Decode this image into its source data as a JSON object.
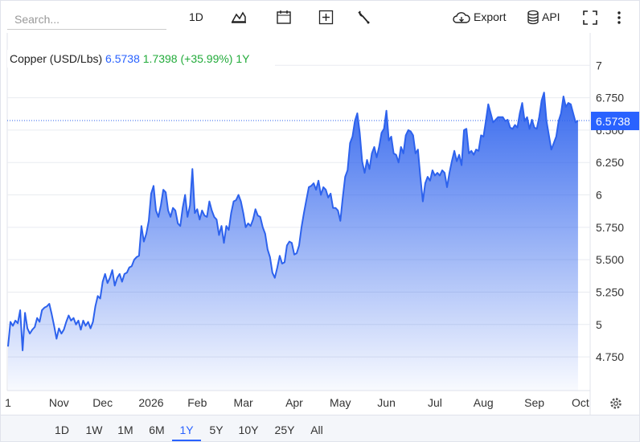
{
  "toolbar": {
    "search_placeholder": "Search...",
    "interval": "1D",
    "export": "Export",
    "api": "API"
  },
  "range_buttons": [
    "1D",
    "1W",
    "1M",
    "6M",
    "1Y",
    "5Y",
    "10Y",
    "25Y",
    "All"
  ],
  "chart_data": {
    "type": "area",
    "title": "Copper (USD/Lbs)",
    "last_price": 6.5738,
    "change": 1.7398,
    "change_pct": {
      "value": 35.99,
      "label": "(+35.99%)"
    },
    "period": "1Y",
    "color": "#2d62ed",
    "grid": true,
    "ylim": [
      4.49,
      7.25
    ],
    "yticks": [
      {
        "value": 4.75,
        "label": "4.750"
      },
      5,
      {
        "value": 5.25,
        "label": "5.250"
      },
      {
        "value": 5.5,
        "label": "5.500"
      },
      {
        "value": 5.75,
        "label": "5.750"
      },
      6,
      {
        "value": 6.25,
        "label": "6.250"
      },
      {
        "value": 6.5,
        "label": "6.500"
      },
      {
        "value": 6.75,
        "label": "6.750"
      },
      7
    ],
    "xlim": [
      0,
      240
    ],
    "xticks": [
      {
        "value": 0,
        "label": "1"
      },
      {
        "value": 21,
        "label": "Nov"
      },
      {
        "value": 39,
        "label": "Dec"
      },
      {
        "value": 59,
        "label": "2026"
      },
      {
        "value": 78,
        "label": "Feb"
      },
      {
        "value": 97,
        "label": "Mar"
      },
      {
        "value": 118,
        "label": "Apr"
      },
      {
        "value": 137,
        "label": "May"
      },
      {
        "value": 156,
        "label": "Jun"
      },
      {
        "value": 176,
        "label": "Jul"
      },
      {
        "value": 196,
        "label": "Aug"
      },
      {
        "value": 217,
        "label": "Sep"
      },
      {
        "value": 236,
        "label": "Oct"
      }
    ],
    "values": [
      4.83,
      5.02,
      4.99,
      5.03,
      5.01,
      5.11,
      4.8,
      5.09,
      4.97,
      4.93,
      4.96,
      4.98,
      5.05,
      5.02,
      5.11,
      5.13,
      5.14,
      5.16,
      5.08,
      4.99,
      4.89,
      4.97,
      4.93,
      4.96,
      5.02,
      5.07,
      5.03,
      5.05,
      5.0,
      5.03,
      4.96,
      5.03,
      4.99,
      5.02,
      4.97,
      5.02,
      5.14,
      5.22,
      5.2,
      5.33,
      5.39,
      5.32,
      5.36,
      5.42,
      5.3,
      5.36,
      5.39,
      5.33,
      5.39,
      5.4,
      5.44,
      5.45,
      5.5,
      5.52,
      5.53,
      5.76,
      5.64,
      5.7,
      5.8,
      6.01,
      6.07,
      5.88,
      5.83,
      5.92,
      6.04,
      6.02,
      5.88,
      5.83,
      5.9,
      5.88,
      5.78,
      5.76,
      5.9,
      6.0,
      5.83,
      5.92,
      6.2,
      5.86,
      5.89,
      5.81,
      5.88,
      5.84,
      5.83,
      5.95,
      5.88,
      5.83,
      5.81,
      5.69,
      5.76,
      5.63,
      5.76,
      5.73,
      5.86,
      5.95,
      5.96,
      6.0,
      5.95,
      5.86,
      5.75,
      5.78,
      5.76,
      5.81,
      5.89,
      5.84,
      5.83,
      5.75,
      5.7,
      5.58,
      5.52,
      5.4,
      5.36,
      5.44,
      5.53,
      5.47,
      5.48,
      5.61,
      5.64,
      5.63,
      5.54,
      5.55,
      5.61,
      5.75,
      5.86,
      5.96,
      6.06,
      6.07,
      6.09,
      6.04,
      6.11,
      6.0,
      6.06,
      6.04,
      5.98,
      6.01,
      5.9,
      5.9,
      5.88,
      5.8,
      5.98,
      6.14,
      6.19,
      6.4,
      6.45,
      6.57,
      6.63,
      6.48,
      6.26,
      6.17,
      6.27,
      6.2,
      6.32,
      6.37,
      6.29,
      6.37,
      6.48,
      6.51,
      6.65,
      6.42,
      6.45,
      6.32,
      6.31,
      6.25,
      6.37,
      6.32,
      6.46,
      6.5,
      6.49,
      6.46,
      6.32,
      6.35,
      6.14,
      5.95,
      6.09,
      6.14,
      6.11,
      6.19,
      6.15,
      6.17,
      6.15,
      6.19,
      6.17,
      6.06,
      6.17,
      6.26,
      6.34,
      6.26,
      6.31,
      6.23,
      6.5,
      6.51,
      6.32,
      6.34,
      6.31,
      6.35,
      6.34,
      6.46,
      6.45,
      6.57,
      6.7,
      6.63,
      6.56,
      6.58,
      6.6,
      6.6,
      6.6,
      6.57,
      6.58,
      6.52,
      6.51,
      6.54,
      6.52,
      6.63,
      6.71,
      6.57,
      6.6,
      6.51,
      6.58,
      6.52,
      6.51,
      6.6,
      6.73,
      6.79,
      6.57,
      6.46,
      6.35,
      6.4,
      6.45,
      6.57,
      6.63,
      6.76,
      6.68,
      6.71,
      6.7,
      6.63,
      6.56,
      6.5738
    ]
  }
}
